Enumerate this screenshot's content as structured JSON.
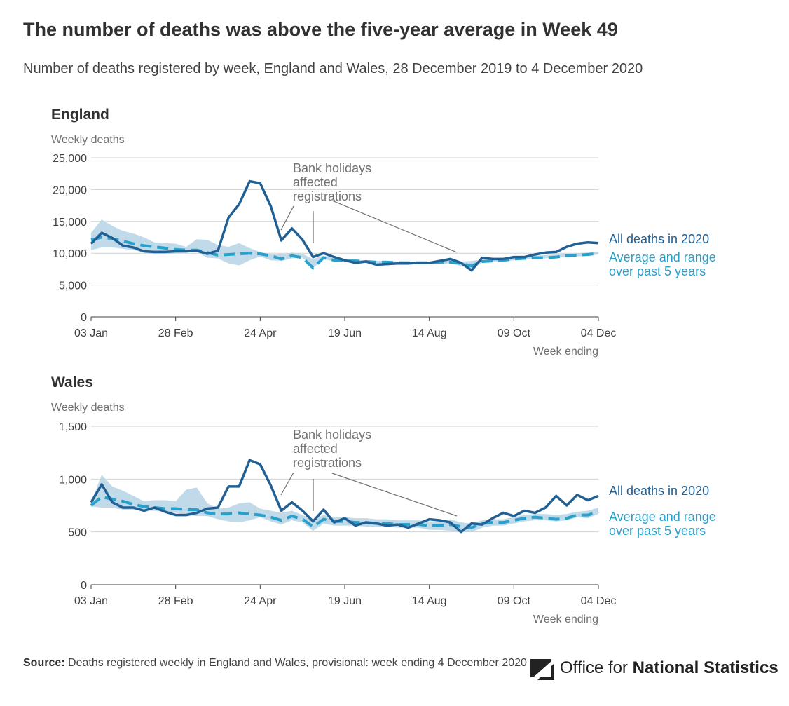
{
  "title": "The number of deaths was above the five-year average in Week 49",
  "subtitle": "Number of deaths registered by week, England and Wales, 28 December 2019 to 4 December 2020",
  "source_label": "Source:",
  "source_text": "Deaths registered weekly in England and Wales, provisional: week ending 4 December 2020",
  "logo": {
    "text_plain": "Office for",
    "text_bold": "National Statistics"
  },
  "colors": {
    "actual": "#206095",
    "average": "#27a0cc",
    "range": "#b5d3e5",
    "grid": "#d0d2d3",
    "axis": "#414042",
    "annotation": "#707071"
  },
  "chart_data": [
    {
      "type": "line",
      "panel_title": "England",
      "ylabel": "Weekly deaths",
      "xlabel": "Week ending",
      "ylim": [
        0,
        25000
      ],
      "yticks": [
        0,
        5000,
        10000,
        15000,
        20000,
        25000
      ],
      "ytick_labels": [
        "0",
        "5,000",
        "10,000",
        "15,000",
        "20,000",
        "25,000"
      ],
      "xticks": [
        {
          "week": 1,
          "label": "03 Jan"
        },
        {
          "week": 9,
          "label": "28 Feb"
        },
        {
          "week": 17,
          "label": "24 Apr"
        },
        {
          "week": 25,
          "label": "19 Jun"
        },
        {
          "week": 33,
          "label": "14 Aug"
        },
        {
          "week": 41,
          "label": "09 Oct"
        },
        {
          "week": 49,
          "label": "04 Dec"
        }
      ],
      "x_weeks": [
        1,
        2,
        3,
        4,
        5,
        6,
        7,
        8,
        9,
        10,
        11,
        12,
        13,
        14,
        15,
        16,
        17,
        18,
        19,
        20,
        21,
        22,
        23,
        24,
        25,
        26,
        27,
        28,
        29,
        30,
        31,
        32,
        33,
        34,
        35,
        36,
        37,
        38,
        39,
        40,
        41,
        42,
        43,
        44,
        45,
        46,
        47,
        48,
        49
      ],
      "series": [
        {
          "name": "All deaths in 2020",
          "values": [
            11500,
            13200,
            12400,
            11200,
            10900,
            10300,
            10200,
            10200,
            10300,
            10300,
            10400,
            9900,
            10400,
            15600,
            17700,
            21300,
            21000,
            17400,
            12000,
            13900,
            12100,
            9400,
            10000,
            9400,
            8900,
            8500,
            8700,
            8200,
            8300,
            8400,
            8400,
            8500,
            8500,
            8800,
            9100,
            8500,
            7300,
            9300,
            9100,
            9100,
            9400,
            9400,
            9800,
            10100,
            10200,
            11000,
            11500,
            11700,
            11600
          ]
        },
        {
          "name": "Average and range over past 5 years",
          "values": [
            12100,
            12500,
            12300,
            11900,
            11500,
            11200,
            11000,
            10800,
            10600,
            10500,
            10500,
            10100,
            9700,
            9800,
            9900,
            10000,
            9900,
            9600,
            9100,
            9600,
            9300,
            7700,
            9300,
            8900,
            8800,
            8800,
            8700,
            8600,
            8600,
            8500,
            8500,
            8500,
            8500,
            8600,
            8600,
            8400,
            8000,
            8700,
            8800,
            8900,
            9100,
            9200,
            9300,
            9300,
            9400,
            9600,
            9700,
            9800,
            10000
          ]
        }
      ],
      "range_low": [
        10500,
        10900,
        10900,
        10700,
        10500,
        10100,
        9800,
        9800,
        10000,
        10100,
        10200,
        9300,
        9200,
        8400,
        8100,
        8900,
        9500,
        8900,
        8800,
        9200,
        9300,
        7700,
        9100,
        8700,
        8600,
        8600,
        8500,
        8400,
        8500,
        8400,
        8400,
        8400,
        8400,
        8300,
        8400,
        8000,
        7600,
        8500,
        8700,
        8700,
        8900,
        9000,
        9200,
        9200,
        9300,
        9400,
        9500,
        9600,
        9800
      ],
      "range_high": [
        13200,
        15300,
        14300,
        13500,
        13100,
        12500,
        11700,
        11600,
        11500,
        11000,
        12200,
        12100,
        11300,
        11000,
        11600,
        10800,
        10200,
        9800,
        9800,
        10100,
        9900,
        9100,
        9600,
        9200,
        9100,
        9000,
        8900,
        8800,
        8800,
        8700,
        8700,
        8700,
        8700,
        8800,
        8900,
        8700,
        8800,
        9000,
        9200,
        9200,
        9400,
        9500,
        9600,
        9700,
        9800,
        9900,
        10000,
        10100,
        10200
      ],
      "annotation": [
        "Bank holidays",
        "affected",
        "registrations"
      ],
      "legend_actual": "All deaths in 2020",
      "legend_average": [
        "Average and range",
        "over past 5 years"
      ]
    },
    {
      "type": "line",
      "panel_title": "Wales",
      "ylabel": "Weekly deaths",
      "xlabel": "Week ending",
      "ylim": [
        0,
        1500
      ],
      "yticks": [
        0,
        500,
        1000,
        1500
      ],
      "ytick_labels": [
        "0",
        "500",
        "1,000",
        "1,500"
      ],
      "xticks": [
        {
          "week": 1,
          "label": "03 Jan"
        },
        {
          "week": 9,
          "label": "28 Feb"
        },
        {
          "week": 17,
          "label": "24 Apr"
        },
        {
          "week": 25,
          "label": "19 Jun"
        },
        {
          "week": 33,
          "label": "14 Aug"
        },
        {
          "week": 41,
          "label": "09 Oct"
        },
        {
          "week": 49,
          "label": "04 Dec"
        }
      ],
      "x_weeks": [
        1,
        2,
        3,
        4,
        5,
        6,
        7,
        8,
        9,
        10,
        11,
        12,
        13,
        14,
        15,
        16,
        17,
        18,
        19,
        20,
        21,
        22,
        23,
        24,
        25,
        26,
        27,
        28,
        29,
        30,
        31,
        32,
        33,
        34,
        35,
        36,
        37,
        38,
        39,
        40,
        41,
        42,
        43,
        44,
        45,
        46,
        47,
        48,
        49
      ],
      "series": [
        {
          "name": "All deaths in 2020",
          "values": [
            780,
            950,
            780,
            730,
            730,
            700,
            730,
            690,
            660,
            660,
            680,
            720,
            730,
            930,
            930,
            1180,
            1140,
            940,
            700,
            780,
            700,
            600,
            710,
            590,
            630,
            560,
            590,
            580,
            560,
            570,
            540,
            580,
            620,
            610,
            590,
            500,
            580,
            570,
            630,
            680,
            650,
            700,
            680,
            730,
            840,
            750,
            850,
            800,
            840
          ]
        },
        {
          "name": "Average and range over past 5 years",
          "values": [
            750,
            830,
            810,
            790,
            760,
            740,
            730,
            720,
            720,
            710,
            710,
            680,
            670,
            670,
            680,
            670,
            660,
            640,
            610,
            650,
            620,
            550,
            620,
            600,
            600,
            590,
            590,
            580,
            580,
            570,
            570,
            570,
            560,
            560,
            570,
            550,
            540,
            580,
            590,
            590,
            610,
            630,
            640,
            630,
            620,
            630,
            660,
            660,
            690
          ]
        }
      ],
      "range_low": [
        740,
        730,
        730,
        710,
        710,
        700,
        700,
        690,
        680,
        660,
        650,
        650,
        620,
        600,
        590,
        610,
        640,
        600,
        570,
        610,
        590,
        510,
        580,
        560,
        560,
        560,
        550,
        550,
        550,
        540,
        540,
        540,
        520,
        520,
        510,
        500,
        500,
        540,
        560,
        560,
        580,
        600,
        610,
        610,
        600,
        610,
        640,
        630,
        670
      ],
      "range_high": [
        780,
        1040,
        930,
        890,
        840,
        790,
        800,
        800,
        790,
        900,
        920,
        770,
        720,
        730,
        770,
        780,
        720,
        700,
        680,
        700,
        660,
        620,
        660,
        640,
        640,
        630,
        630,
        620,
        620,
        610,
        610,
        610,
        600,
        600,
        620,
        590,
        580,
        610,
        620,
        620,
        640,
        660,
        670,
        670,
        660,
        670,
        690,
        700,
        730
      ],
      "annotation": [
        "Bank holidays",
        "affected",
        "registrations"
      ],
      "legend_actual": "All deaths in 2020",
      "legend_average": [
        "Average and range",
        "over past 5 years"
      ]
    }
  ]
}
